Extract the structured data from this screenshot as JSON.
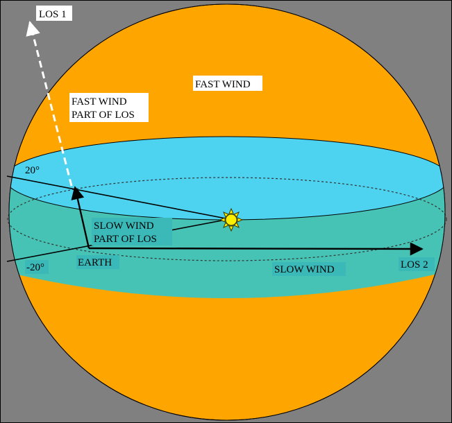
{
  "labels": {
    "los1": "LOS 1",
    "fast_wind_top": "FAST WIND",
    "fast_wind_part_line1": "FAST WIND",
    "fast_wind_part_line2": "PART OF LOS",
    "lat_plus": "20°",
    "lat_minus": "-20°",
    "slow_wind_part_line1": "SLOW WIND",
    "slow_wind_part_line2": "PART OF LOS",
    "earth": "EARTH",
    "slow_wind": "SLOW WIND",
    "los2": "LOS 2"
  },
  "colors": {
    "background": "#808080",
    "fast_wind_region": "#FFA500",
    "slow_wind_top": "#4DD2F0",
    "slow_wind_band": "#46C3B4",
    "sun": "#FFF000",
    "label_box_white": "#FFFFFF",
    "label_box_teal": "#3BB8B8",
    "label_box_blue": "#4DD2F0"
  },
  "icons": {
    "sun": "sun-icon"
  }
}
